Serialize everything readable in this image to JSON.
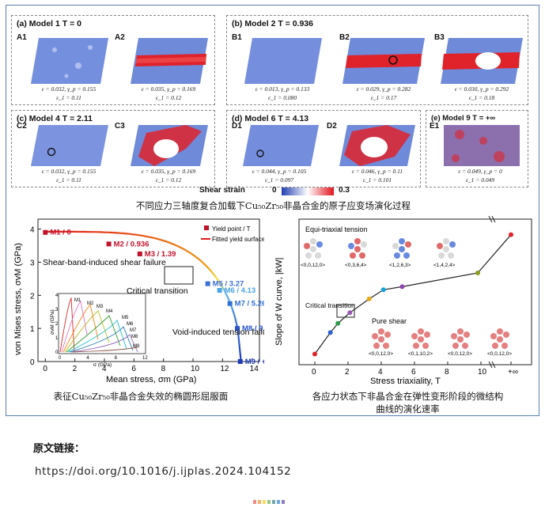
{
  "panel_a": {
    "title": "(a) Model 1  T = 0",
    "maps": [
      {
        "label": "A1",
        "cap1": "ε = 0.032, γ_p = 0.155",
        "cap2": "ε_1 = 0.11"
      },
      {
        "label": "A2",
        "cap1": "ε = 0.035, γ_p = 0.169",
        "cap2": "ε_1 = 0.12"
      }
    ]
  },
  "panel_b": {
    "title": "(b) Model 2  T = 0.936",
    "maps": [
      {
        "label": "B1",
        "cap1": "ε = 0.013, γ_p = 0.133",
        "cap2": "ε_1 = 0.080"
      },
      {
        "label": "B2",
        "cap1": "ε = 0.029, γ_p = 0.282",
        "cap2": "ε_1 = 0.17"
      },
      {
        "label": "B3",
        "cap1": "ε = 0.030, γ_p = 0.292",
        "cap2": "ε_1 = 0.18"
      }
    ]
  },
  "panel_c": {
    "title": "(c) Model 4  T = 2.11",
    "maps": [
      {
        "label": "C2",
        "cap1": "ε = 0.032, γ_p = 0.155",
        "cap2": "ε_1 = 0.11"
      },
      {
        "label": "C3",
        "cap1": "ε = 0.035, γ_p = 0.169",
        "cap2": "ε_1 = 0.12"
      }
    ]
  },
  "panel_d": {
    "title": "(d) Model 6  T = 4.13",
    "maps": [
      {
        "label": "D1",
        "cap1": "ε = 0.044, γ_p = 0.105",
        "cap2": "ε_1 = 0.097"
      },
      {
        "label": "D2",
        "cap1": "ε = 0.046, γ_p = 0.11",
        "cap2": "ε_1 = 0.101"
      }
    ]
  },
  "panel_e": {
    "title": "(e) Model 9  T = +∞",
    "maps": [
      {
        "label": "E1",
        "cap1": "ε = 0.049, γ_p = 0",
        "cap2": "ε_1 = 0.049"
      }
    ]
  },
  "colorbar": {
    "label": "Shear strain",
    "min": "0",
    "max": "0.3",
    "low_color": "#1f3fb0",
    "high_color": "#e0141b"
  },
  "caption_top": "不同应力三轴度复合加载下Cu₅₀Zr₅₀非晶合金的原子应变场演化过程",
  "caption_left": "表征Cu₅₀Zr₅₀非晶合金失效的椭圆形屈服面",
  "caption_right_1": "各应力状态下非晶合金在弹性变形阶段的微结构",
  "caption_right_2": "曲线的演化速率",
  "chart_data": [
    {
      "type": "line",
      "xlabel": "Mean stress, σm (GPa)",
      "ylabel": "von Mises stress, σvM (GPa)",
      "xlim": [
        -0.5,
        14.5
      ],
      "ylim": [
        0,
        4.3
      ],
      "xticks": [
        "0",
        "2",
        "4",
        "6",
        "8",
        "10",
        "12",
        "14"
      ],
      "yticks": [
        "0",
        "1",
        "2",
        "3",
        "4"
      ],
      "legend": [
        "Yield point / T",
        "Fitted yield surface"
      ],
      "points": [
        {
          "label": "M1 / 0",
          "x": 0.0,
          "y": 3.9
        },
        {
          "label": "M2 / 0.936",
          "x": 4.3,
          "y": 3.55
        },
        {
          "label": "M3 / 1.39",
          "x": 6.4,
          "y": 3.25
        },
        {
          "label": "M5 / 3.27",
          "x": 11.0,
          "y": 2.35
        },
        {
          "label": "M6 / 4.13",
          "x": 11.8,
          "y": 2.15
        },
        {
          "label": "M7 / 5.26",
          "x": 12.5,
          "y": 1.75
        },
        {
          "label": "M8 / 9.81",
          "x": 13.0,
          "y": 1.0
        },
        {
          "label": "M9 / +∞",
          "x": 13.2,
          "y": 0.0
        }
      ],
      "annotations": [
        "Shear-band-induced shear failure",
        "Critical transition",
        "Void-induced tension failure"
      ],
      "inset": {
        "xlabel": "σ (GPa)",
        "ylabel": "σvM (GPa)",
        "xticks": [
          "0",
          "4",
          "8",
          "12"
        ],
        "yticks": [
          "0",
          "1",
          "2",
          "3",
          "4"
        ],
        "labels": [
          "M1",
          "M2",
          "M3",
          "M4",
          "M5",
          "M6",
          "M7",
          "M8",
          "M9"
        ]
      }
    },
    {
      "type": "line",
      "xlabel": "Stress triaxiality, T",
      "ylabel": "Slope of W curve, |kW|",
      "xticks": [
        "0",
        "2",
        "4",
        "6",
        "8",
        "10",
        "+∞"
      ],
      "x": [
        "0",
        "0.936",
        "1.39",
        "2.11",
        "3.27",
        "4.13",
        "5.26",
        "9.81",
        "+∞"
      ],
      "values": [
        0.22,
        0.36,
        0.42,
        0.49,
        0.58,
        0.64,
        0.66,
        0.75,
        1.0
      ],
      "annotations": [
        "Equi-triaxial tension",
        "Critical transition",
        "Pure shear"
      ],
      "indices_top": [
        "<0,0,12,0>",
        "<0,3,6,4>",
        "<1,2,6,3>",
        "<1,4,2,4>"
      ],
      "indices_bottom": [
        "<0,0,12,0>",
        "<0,1,10,2>",
        "<0,0,12,0>",
        "<0,0,12,0>"
      ]
    }
  ],
  "reference": {
    "title": "原文链接：",
    "link": "https://doi.org/10.1016/j.ijplas.2024.104152"
  },
  "dot_colors": [
    "#f28b82",
    "#f6b26b",
    "#ffd966",
    "#93c47d",
    "#76a5af",
    "#6fa8dc",
    "#8e7cc3"
  ]
}
